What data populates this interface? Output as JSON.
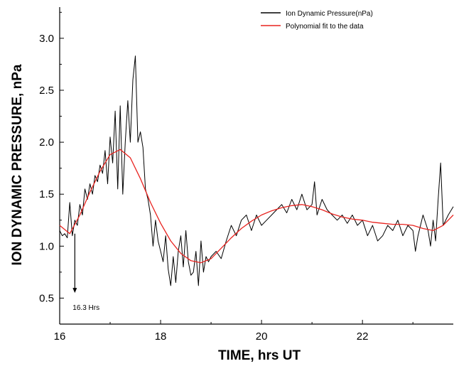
{
  "chart_data": {
    "type": "line",
    "xlabel": "TIME, hrs UT",
    "ylabel": "ION DYNAMIC PRESSURE, nPa",
    "xlim": [
      16,
      23.8
    ],
    "ylim": [
      0.25,
      3.3
    ],
    "grid": false,
    "legend_position": "top-right",
    "x_ticks": [
      16,
      18,
      20,
      22
    ],
    "x_tick_labels": [
      "16",
      "18",
      "20",
      "22"
    ],
    "y_ticks": [
      0.5,
      1.0,
      1.5,
      2.0,
      2.5,
      3.0
    ],
    "y_tick_labels": [
      "0.5",
      "1.0",
      "1.5",
      "2.0",
      "2.5",
      "3.0"
    ],
    "series": [
      {
        "name": "Ion Dynamic Pressure(nPa)",
        "color": "#000000",
        "x": [
          16.0,
          16.05,
          16.1,
          16.15,
          16.2,
          16.25,
          16.3,
          16.35,
          16.4,
          16.45,
          16.5,
          16.55,
          16.6,
          16.65,
          16.7,
          16.75,
          16.8,
          16.85,
          16.9,
          16.95,
          17.0,
          17.05,
          17.1,
          17.15,
          17.2,
          17.25,
          17.3,
          17.35,
          17.4,
          17.45,
          17.5,
          17.55,
          17.6,
          17.65,
          17.7,
          17.75,
          17.8,
          17.85,
          17.9,
          17.95,
          18.0,
          18.05,
          18.1,
          18.15,
          18.2,
          18.25,
          18.3,
          18.35,
          18.4,
          18.45,
          18.5,
          18.55,
          18.6,
          18.65,
          18.7,
          18.75,
          18.8,
          18.85,
          18.9,
          18.95,
          19.0,
          19.1,
          19.2,
          19.3,
          19.4,
          19.5,
          19.6,
          19.7,
          19.8,
          19.9,
          20.0,
          20.1,
          20.2,
          20.3,
          20.4,
          20.5,
          20.6,
          20.7,
          20.8,
          20.9,
          21.0,
          21.05,
          21.1,
          21.2,
          21.3,
          21.4,
          21.5,
          21.6,
          21.7,
          21.8,
          21.9,
          22.0,
          22.1,
          22.2,
          22.3,
          22.4,
          22.5,
          22.6,
          22.7,
          22.8,
          22.9,
          23.0,
          23.05,
          23.1,
          23.2,
          23.3,
          23.35,
          23.4,
          23.45,
          23.5,
          23.55,
          23.6,
          23.7,
          23.8
        ],
        "values": [
          1.15,
          1.1,
          1.12,
          1.08,
          1.42,
          1.1,
          1.25,
          1.2,
          1.4,
          1.3,
          1.55,
          1.45,
          1.6,
          1.5,
          1.68,
          1.62,
          1.78,
          1.7,
          1.92,
          1.6,
          2.05,
          1.8,
          2.3,
          1.55,
          2.35,
          1.5,
          2.0,
          2.4,
          2.0,
          2.6,
          2.83,
          2.0,
          2.1,
          1.95,
          1.55,
          1.45,
          1.3,
          1.0,
          1.25,
          1.05,
          0.95,
          0.85,
          1.1,
          0.78,
          0.62,
          0.9,
          0.65,
          0.95,
          1.1,
          0.8,
          1.15,
          0.85,
          0.72,
          0.75,
          0.95,
          0.62,
          1.05,
          0.75,
          0.9,
          0.85,
          0.9,
          0.95,
          0.88,
          1.05,
          1.2,
          1.1,
          1.25,
          1.3,
          1.15,
          1.3,
          1.2,
          1.25,
          1.3,
          1.35,
          1.4,
          1.32,
          1.45,
          1.35,
          1.5,
          1.35,
          1.4,
          1.62,
          1.3,
          1.45,
          1.35,
          1.3,
          1.25,
          1.3,
          1.22,
          1.3,
          1.2,
          1.25,
          1.1,
          1.2,
          1.05,
          1.1,
          1.2,
          1.15,
          1.25,
          1.1,
          1.2,
          1.15,
          0.95,
          1.1,
          1.3,
          1.15,
          1.0,
          1.25,
          1.05,
          1.45,
          1.8,
          1.2,
          1.3,
          1.38
        ]
      },
      {
        "name": "Polynomial fit to the data",
        "color": "#e8231f",
        "x": [
          16.0,
          16.2,
          16.4,
          16.6,
          16.8,
          17.0,
          17.2,
          17.4,
          17.6,
          17.8,
          18.0,
          18.2,
          18.4,
          18.6,
          18.8,
          19.0,
          19.2,
          19.4,
          19.6,
          19.8,
          20.0,
          20.2,
          20.4,
          20.6,
          20.8,
          21.0,
          21.2,
          21.4,
          21.6,
          21.8,
          22.0,
          22.2,
          22.4,
          22.6,
          22.8,
          23.0,
          23.2,
          23.4,
          23.6,
          23.8
        ],
        "values": [
          1.2,
          1.12,
          1.3,
          1.52,
          1.72,
          1.88,
          1.93,
          1.85,
          1.65,
          1.42,
          1.22,
          1.05,
          0.93,
          0.86,
          0.84,
          0.88,
          0.98,
          1.08,
          1.17,
          1.24,
          1.3,
          1.34,
          1.37,
          1.39,
          1.4,
          1.38,
          1.35,
          1.31,
          1.28,
          1.26,
          1.25,
          1.23,
          1.22,
          1.21,
          1.21,
          1.2,
          1.17,
          1.15,
          1.2,
          1.3
        ]
      }
    ],
    "annotations": [
      {
        "text": "16.3 Hrs",
        "x": 16.3,
        "y_from": 1.12,
        "y_to": 0.55
      }
    ]
  }
}
